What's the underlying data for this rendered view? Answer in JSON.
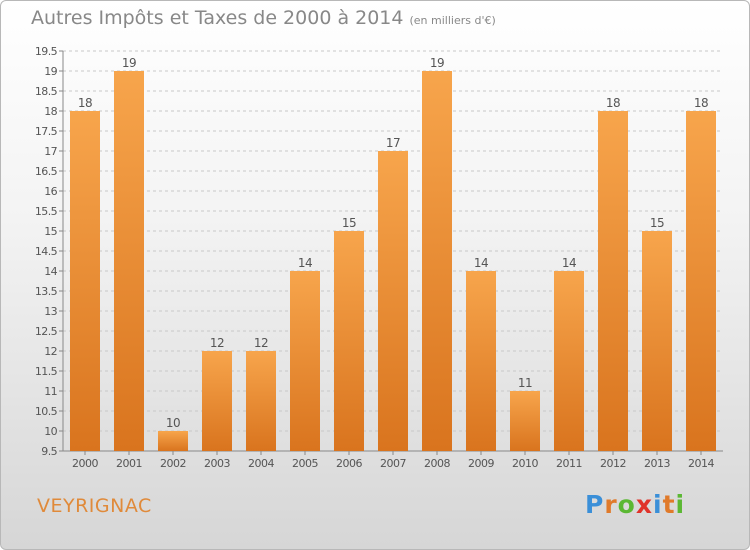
{
  "title": "Autres Impôts et Taxes de 2000 à 2014",
  "title_unit": "(en milliers d'€)",
  "town": "VEYRIGNAC",
  "logo": {
    "text": "Proxiti",
    "letter_colors": [
      "#3a8fd8",
      "#e07a2a",
      "#5bb833",
      "#e0332a",
      "#3a8fd8",
      "#e07a2a",
      "#5bb833"
    ]
  },
  "colors": {
    "bar_top": "#f7a54c",
    "bar_bottom": "#d9741e",
    "grid": "#c8c8c8",
    "text": "#555555"
  },
  "chart_data": {
    "type": "bar",
    "categories": [
      "2000",
      "2001",
      "2002",
      "2003",
      "2004",
      "2005",
      "2006",
      "2007",
      "2008",
      "2009",
      "2010",
      "2011",
      "2012",
      "2013",
      "2014"
    ],
    "values": [
      18,
      19,
      10,
      12,
      12,
      14,
      15,
      17,
      19,
      14,
      11,
      14,
      18,
      15,
      18
    ],
    "ylim": [
      9.5,
      19.5
    ],
    "yticks": [
      "9.5",
      "10",
      "10.5",
      "11",
      "11.5",
      "12",
      "12.5",
      "13",
      "13.5",
      "14",
      "14.5",
      "15",
      "15.5",
      "16",
      "16.5",
      "17",
      "17.5",
      "18",
      "18.5",
      "19",
      "19.5"
    ],
    "grid": true
  }
}
